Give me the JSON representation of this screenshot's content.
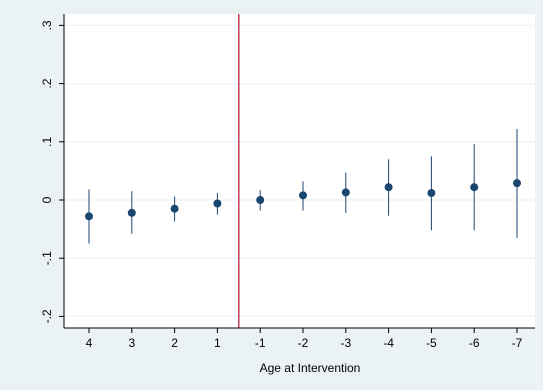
{
  "chart_data": {
    "type": "scatter",
    "title": "",
    "xlabel": "Age at Intervention",
    "ylabel": "",
    "categories": [
      "4",
      "3",
      "2",
      "1",
      "-1",
      "-2",
      "-3",
      "-4",
      "-5",
      "-6",
      "-7"
    ],
    "values": [
      -0.028,
      -0.022,
      -0.015,
      -0.006,
      0.0,
      0.008,
      0.013,
      0.022,
      0.012,
      0.022,
      0.029
    ],
    "ci_low": [
      -0.075,
      -0.058,
      -0.037,
      -0.025,
      -0.018,
      -0.018,
      -0.022,
      -0.027,
      -0.052,
      -0.052,
      -0.065
    ],
    "ci_high": [
      0.018,
      0.015,
      0.006,
      0.012,
      0.017,
      0.032,
      0.047,
      0.07,
      0.075,
      0.096,
      0.122
    ],
    "ylim": [
      -0.2,
      0.3
    ],
    "yticks": [
      -0.2,
      -0.1,
      0.0,
      0.1,
      0.2,
      0.3
    ],
    "ytick_labels": [
      "-.2",
      "-.1",
      "0",
      ".1",
      ".2",
      ".3"
    ],
    "vertical_line_between": [
      "1",
      "-1"
    ],
    "grid": true,
    "colors": {
      "background": "#eaf2f3",
      "plot_area": "#ffffff",
      "marker": "#1a476f",
      "ref_line": "#b71c3f",
      "grid": "#eaf2f3"
    }
  }
}
